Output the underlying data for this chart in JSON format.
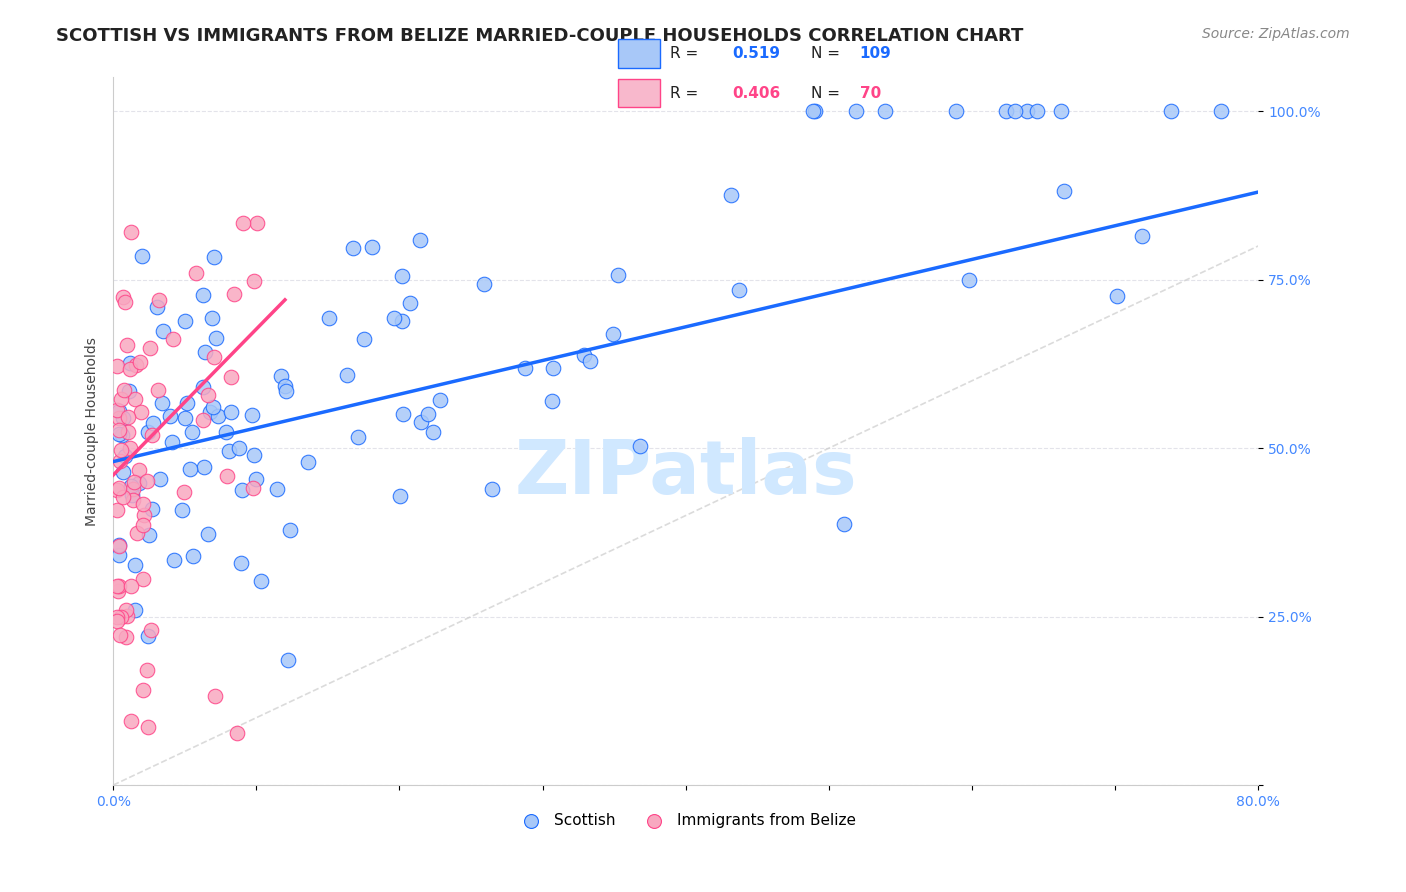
{
  "title": "SCOTTISH VS IMMIGRANTS FROM BELIZE MARRIED-COUPLE HOUSEHOLDS CORRELATION CHART",
  "source": "Source: ZipAtlas.com",
  "ylabel": "Married-couple Households",
  "xlim": [
    0.0,
    0.8
  ],
  "ylim": [
    0.0,
    1.05
  ],
  "xticks": [
    0.0,
    0.1,
    0.2,
    0.3,
    0.4,
    0.5,
    0.6,
    0.7,
    0.8
  ],
  "ytick_positions": [
    0.0,
    0.25,
    0.5,
    0.75,
    1.0
  ],
  "ytick_labels": [
    "",
    "25.0%",
    "50.0%",
    "75.0%",
    "100.0%"
  ],
  "scatter_color_blue": "#a8c8f8",
  "scatter_color_pink": "#f8a8c0",
  "line_color_blue": "#1a6aff",
  "line_color_pink": "#ff4488",
  "line_color_diag": "#cccccc",
  "legend_box_blue": "#a8c8f8",
  "legend_box_pink": "#f8b8cc",
  "watermark": "ZIPatlas",
  "watermark_color": "#d0e8ff",
  "blue_line_y0": 0.48,
  "blue_line_y1": 0.88,
  "pink_line_x0": 0.0,
  "pink_line_x1": 0.12,
  "pink_line_y0": 0.46,
  "pink_line_y1": 0.72,
  "grid_color": "#e0e0e8",
  "tick_color": "#4488ff",
  "title_fontsize": 13,
  "source_fontsize": 10,
  "label_fontsize": 10,
  "tick_fontsize": 10
}
